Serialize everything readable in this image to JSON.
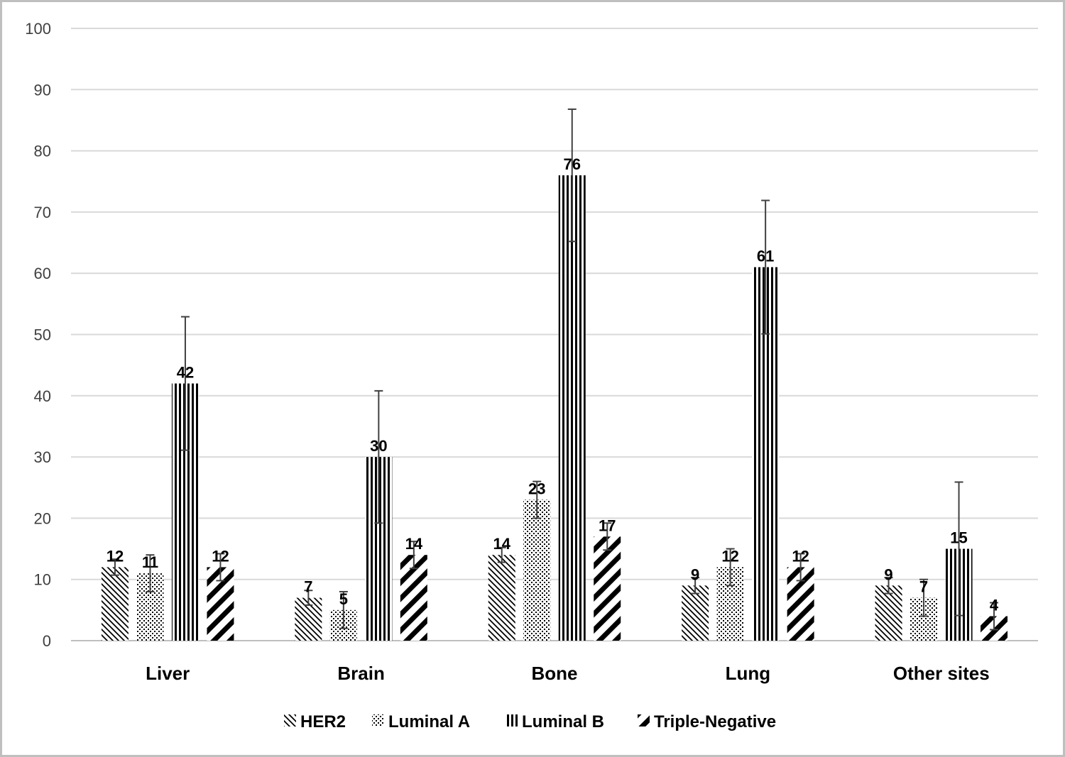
{
  "chart_data": {
    "type": "bar",
    "categories": [
      "Liver",
      "Brain",
      "Bone",
      "Lung",
      "Other sites"
    ],
    "series": [
      {
        "name": "HER2",
        "values": [
          12,
          7,
          14,
          9,
          9
        ],
        "error": [
          1.3,
          1.2,
          1.2,
          1.3,
          1.3
        ],
        "pattern": "diag-right"
      },
      {
        "name": "Luminal A",
        "values": [
          11,
          5,
          23,
          12,
          7
        ],
        "error": [
          3,
          3,
          3,
          3,
          3
        ],
        "pattern": "dots"
      },
      {
        "name": "Luminal B",
        "values": [
          42,
          30,
          76,
          61,
          15
        ],
        "error": [
          10.9,
          10.8,
          10.8,
          10.9,
          10.9
        ],
        "pattern": "vertical"
      },
      {
        "name": "Triple-Negative",
        "values": [
          12,
          14,
          17,
          12,
          4
        ],
        "error": [
          2.2,
          2.2,
          2.2,
          2.2,
          2.2
        ],
        "pattern": "diag-bold"
      }
    ],
    "ylim": [
      0,
      100
    ],
    "yticks": [
      "0",
      "10",
      "20",
      "30",
      "40",
      "50",
      "60",
      "70",
      "80",
      "90",
      "100"
    ],
    "grid": true,
    "legend": "bottom",
    "data_labels": true,
    "colors": {
      "bar": "#000000",
      "grid": "#d9d9d9",
      "axis": "#bfbfbf",
      "tick_text": "#404040"
    }
  }
}
